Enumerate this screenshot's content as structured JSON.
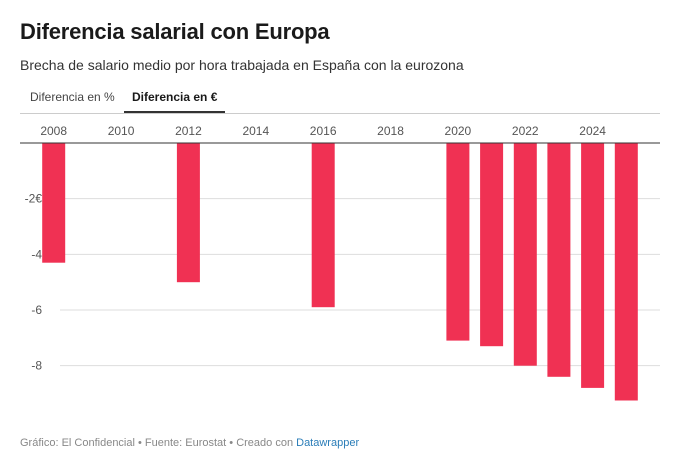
{
  "header": {
    "title": "Diferencia salarial con Europa",
    "subtitle": "Brecha de salario medio por hora trabajada en España con la eurozona"
  },
  "tabs": [
    {
      "label": "Diferencia en %",
      "active": false
    },
    {
      "label": "Diferencia en €",
      "active": true
    }
  ],
  "footer": {
    "source_label": "Gráfico: El Confidencial • Fuente: Eurostat • Creado con",
    "tool_link": "Datawrapper"
  },
  "colors": {
    "bar": "#f03153",
    "grid": "#dddddd",
    "axis": "#333333",
    "tick_text": "#555555",
    "link": "#2a7db8"
  },
  "chart_data": {
    "type": "bar",
    "title": "Diferencia salarial con Europa",
    "subtitle": "Brecha de salario medio por hora trabajada en España con la eurozona",
    "xlabel": "",
    "ylabel": "",
    "x_axis_position": "top",
    "x_range": [
      2007,
      2026
    ],
    "x_ticks": [
      2008,
      2010,
      2012,
      2014,
      2016,
      2018,
      2020,
      2022,
      2024
    ],
    "x_tick_labels": [
      "2008",
      "2010",
      "2012",
      "2014",
      "2016",
      "2018",
      "2020",
      "2022",
      "2024"
    ],
    "ylim": [
      -9.7,
      0
    ],
    "y_ticks": [
      -2,
      -4,
      -6,
      -8
    ],
    "y_tick_labels": [
      "-2€",
      "-4",
      "-6",
      "-8"
    ],
    "grid": true,
    "series": [
      {
        "name": "Diferencia en €",
        "x": [
          2008,
          2012,
          2016,
          2020,
          2021,
          2022,
          2023,
          2024,
          2025
        ],
        "values": [
          -4.3,
          -5.0,
          -5.9,
          -7.1,
          -7.3,
          -8.0,
          -8.4,
          -8.8,
          -9.25
        ]
      }
    ]
  }
}
